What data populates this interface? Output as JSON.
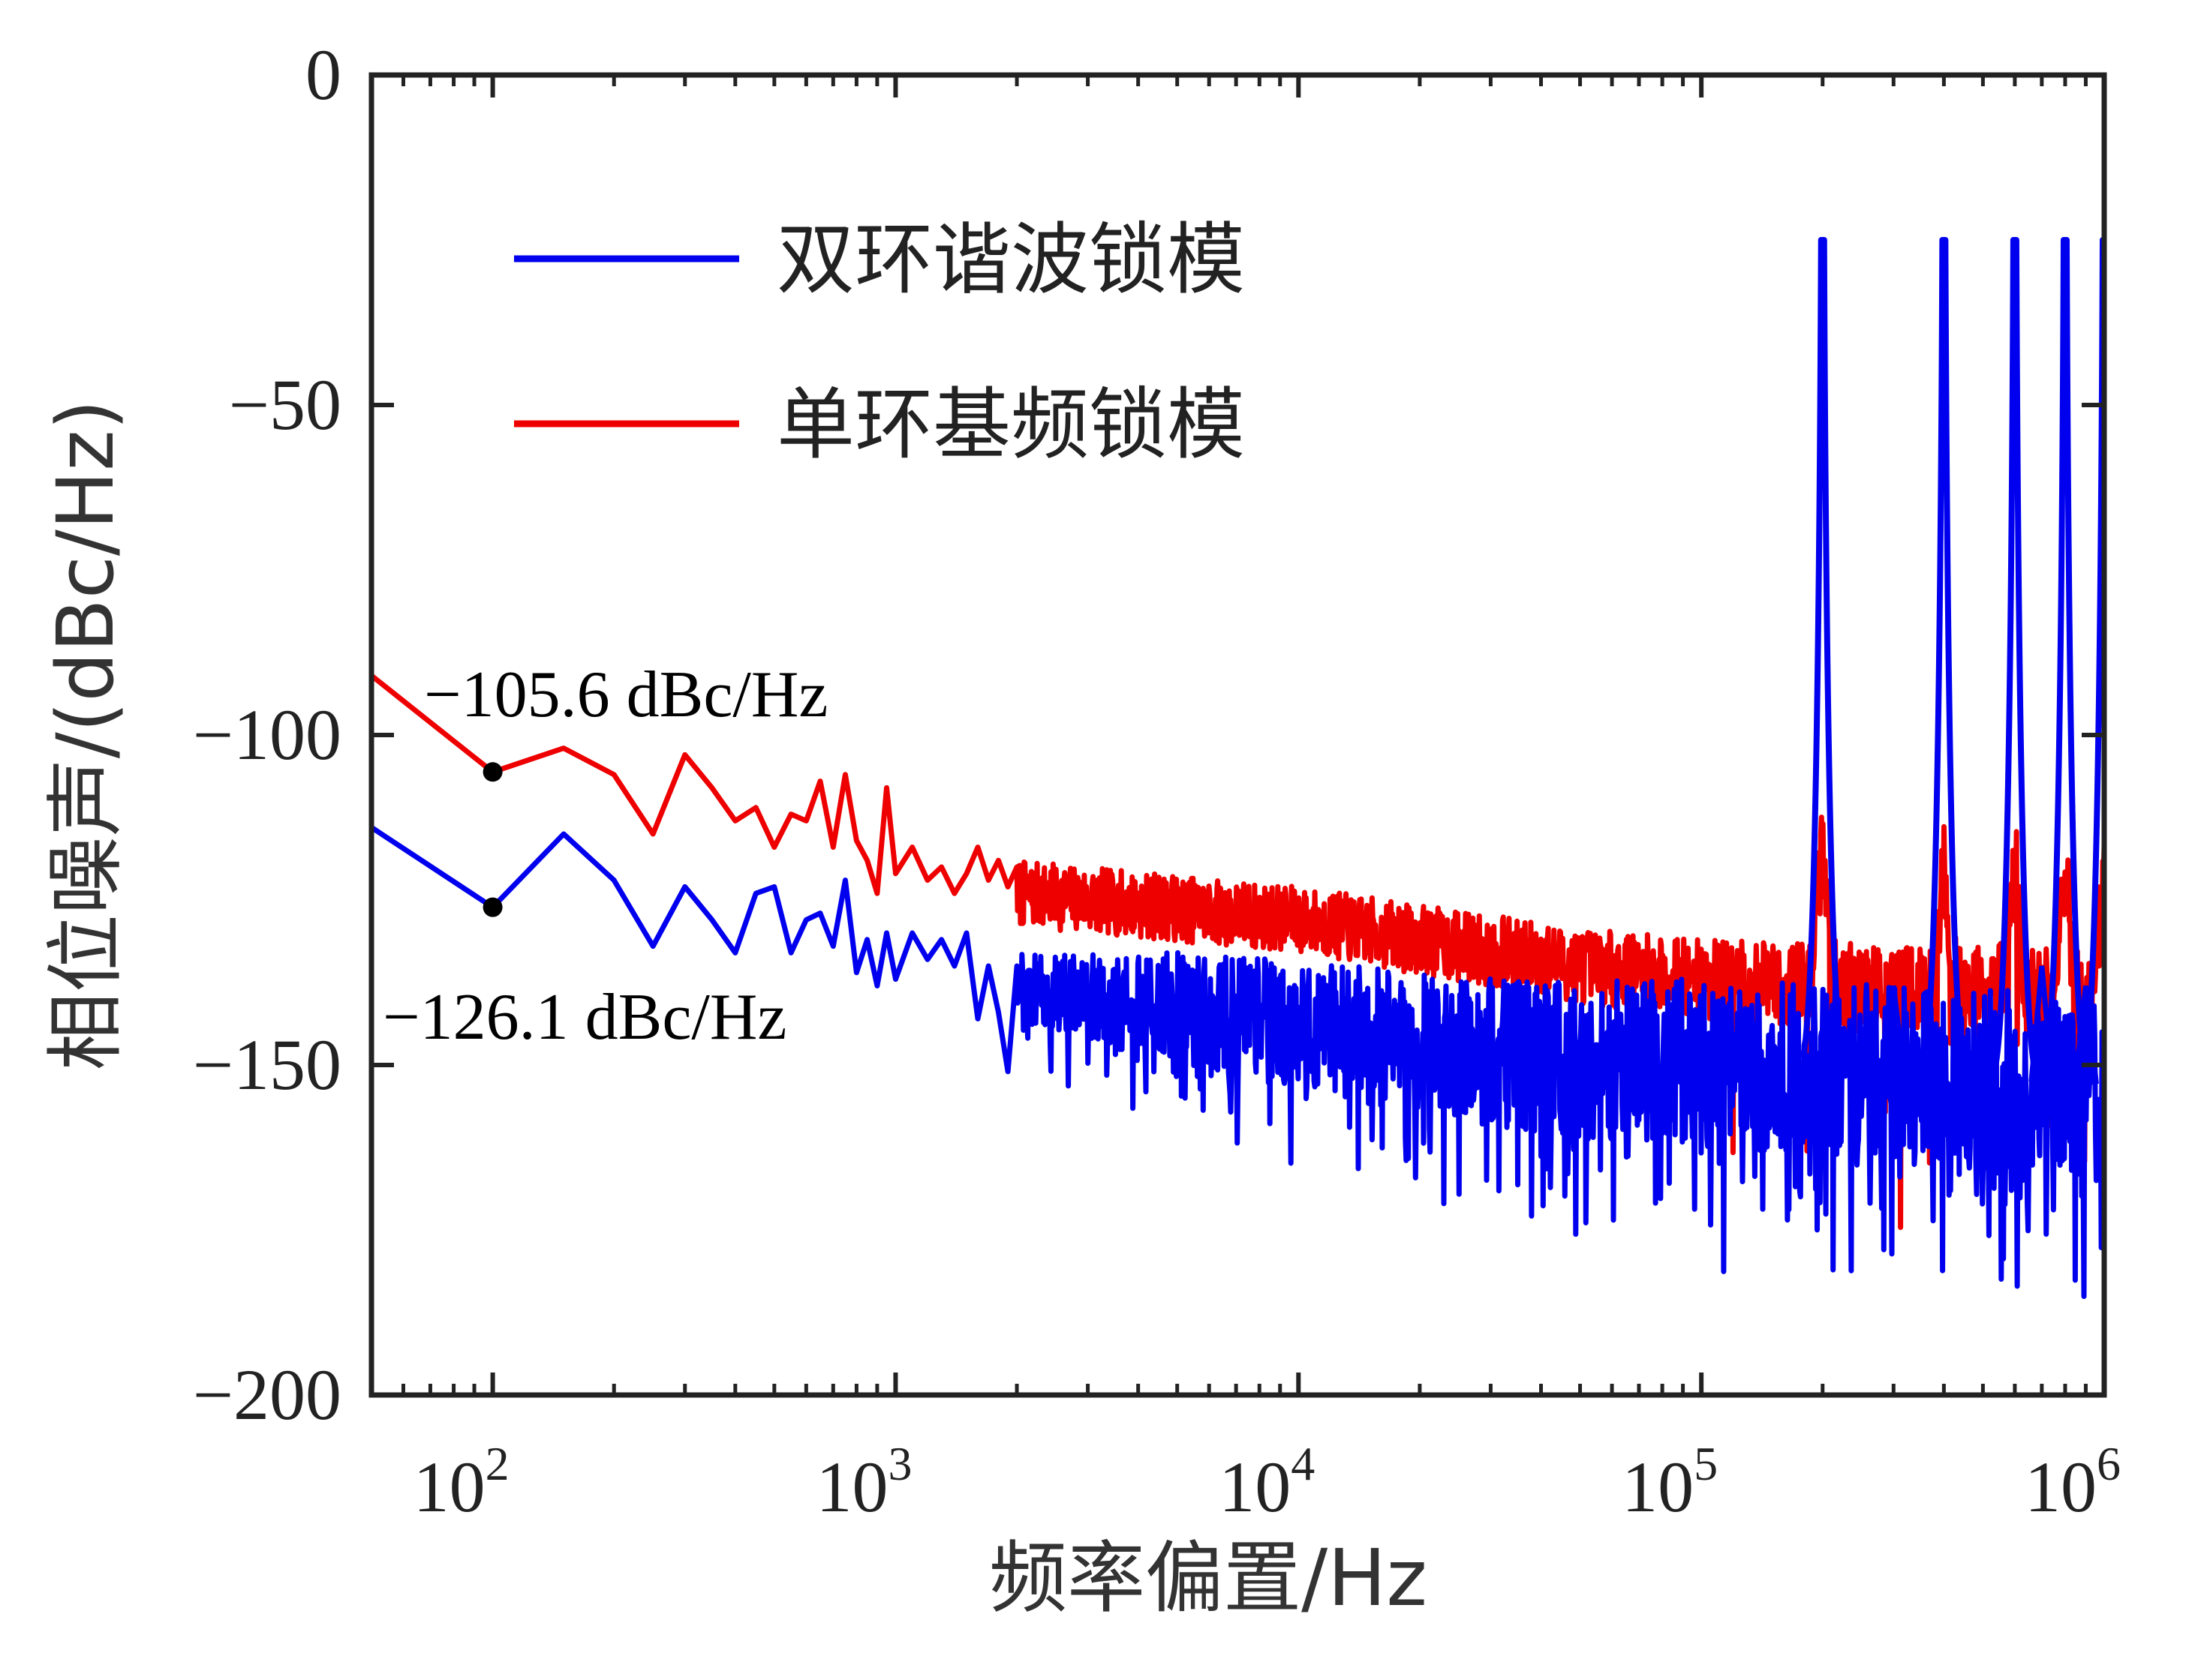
{
  "chart_data": {
    "type": "line",
    "title": "",
    "xlabel": "频率偏置/Hz",
    "ylabel": "相位噪声/(dBc/Hz)",
    "xscale": "log",
    "xlim": [
      50,
      1000000
    ],
    "ylim": [
      -200,
      0
    ],
    "grid": false,
    "legend_position": "top-left",
    "x_ticks": [
      {
        "base": "10",
        "exp": "2",
        "value": 100
      },
      {
        "base": "10",
        "exp": "3",
        "value": 1000
      },
      {
        "base": "10",
        "exp": "4",
        "value": 10000
      },
      {
        "base": "10",
        "exp": "5",
        "value": 100000
      },
      {
        "base": "10",
        "exp": "6",
        "value": 1000000
      }
    ],
    "y_ticks": [
      {
        "label": "0",
        "value": 0
      },
      {
        "label": "−50",
        "value": -50
      },
      {
        "label": "−100",
        "value": -100
      },
      {
        "label": "−150",
        "value": -150
      },
      {
        "label": "−200",
        "value": -200
      }
    ],
    "series": [
      {
        "name": "双环谐波锁模",
        "color": "#0000ee",
        "low_freq_points": [
          [
            50,
            -114
          ],
          [
            100,
            -126.1
          ],
          [
            150,
            -115
          ],
          [
            200,
            -122
          ],
          [
            250,
            -132
          ],
          [
            300,
            -123
          ],
          [
            350,
            -128
          ],
          [
            400,
            -133
          ],
          [
            450,
            -124
          ],
          [
            500,
            -123
          ],
          [
            550,
            -133
          ],
          [
            600,
            -128
          ],
          [
            650,
            -127
          ],
          [
            700,
            -132
          ],
          [
            750,
            -122
          ],
          [
            800,
            -136
          ],
          [
            850,
            -131
          ],
          [
            900,
            -138
          ],
          [
            950,
            -130
          ],
          [
            1000,
            -137
          ],
          [
            1100,
            -130
          ],
          [
            1200,
            -134
          ],
          [
            1300,
            -131
          ],
          [
            1400,
            -135
          ],
          [
            1500,
            -130
          ],
          [
            1600,
            -143
          ],
          [
            1700,
            -135
          ],
          [
            1800,
            -142
          ],
          [
            1900,
            -151
          ],
          [
            2000,
            -135
          ]
        ],
        "noise_floor": [
          [
            2000,
            -138
          ],
          [
            6000,
            -142
          ],
          [
            30000,
            -148
          ],
          [
            100000,
            -150
          ],
          [
            1000000,
            -153
          ]
        ],
        "noise_spread": [
          [
            2000,
            5
          ],
          [
            6000,
            9
          ],
          [
            100000,
            13
          ],
          [
            1000000,
            14
          ]
        ],
        "spurs": [
          {
            "x": 200000,
            "peak": -25
          },
          {
            "x": 400000,
            "peak": -25
          },
          {
            "x": 600000,
            "peak": -25
          },
          {
            "x": 800000,
            "peak": -25
          },
          {
            "x": 1000000,
            "peak": -25
          }
        ],
        "minor_spurs": [
          {
            "x": 300000,
            "peak": -138
          },
          {
            "x": 700000,
            "peak": -135
          },
          {
            "x": 900000,
            "peak": -138
          }
        ]
      },
      {
        "name": "单环基频锁模",
        "color": "#ee0000",
        "low_freq_points": [
          [
            50,
            -91
          ],
          [
            100,
            -105.6
          ],
          [
            150,
            -102
          ],
          [
            200,
            -106
          ],
          [
            250,
            -115
          ],
          [
            300,
            -103
          ],
          [
            350,
            -108
          ],
          [
            400,
            -113
          ],
          [
            450,
            -111
          ],
          [
            500,
            -117
          ],
          [
            550,
            -112
          ],
          [
            600,
            -113
          ],
          [
            650,
            -107
          ],
          [
            700,
            -117
          ],
          [
            750,
            -106
          ],
          [
            800,
            -116
          ],
          [
            850,
            -119
          ],
          [
            900,
            -124
          ],
          [
            950,
            -108
          ],
          [
            1000,
            -121
          ],
          [
            1100,
            -117
          ],
          [
            1200,
            -122
          ],
          [
            1300,
            -120
          ],
          [
            1400,
            -124
          ],
          [
            1500,
            -121
          ],
          [
            1600,
            -117
          ],
          [
            1700,
            -122
          ],
          [
            1800,
            -119
          ],
          [
            1900,
            -123
          ],
          [
            2000,
            -120
          ]
        ],
        "noise_floor": [
          [
            2000,
            -124
          ],
          [
            10000,
            -128
          ],
          [
            50000,
            -135
          ],
          [
            100000,
            -137
          ],
          [
            1000000,
            -140
          ]
        ],
        "noise_spread": [
          [
            2000,
            5
          ],
          [
            10000,
            5
          ],
          [
            100000,
            6
          ],
          [
            1000000,
            8
          ]
        ],
        "humps": [
          {
            "x": 200000,
            "peak": -118
          },
          {
            "x": 400000,
            "peak": -121
          },
          {
            "x": 600000,
            "peak": -121
          },
          {
            "x": 800000,
            "peak": -122
          },
          {
            "x": 1000000,
            "peak": -121
          }
        ]
      }
    ],
    "markers": [
      {
        "x": 100,
        "y": -105.6,
        "label": "−105.6 dBc/Hz"
      },
      {
        "x": 100,
        "y": -126.1,
        "label": "−126.1 dBc/Hz"
      }
    ]
  }
}
